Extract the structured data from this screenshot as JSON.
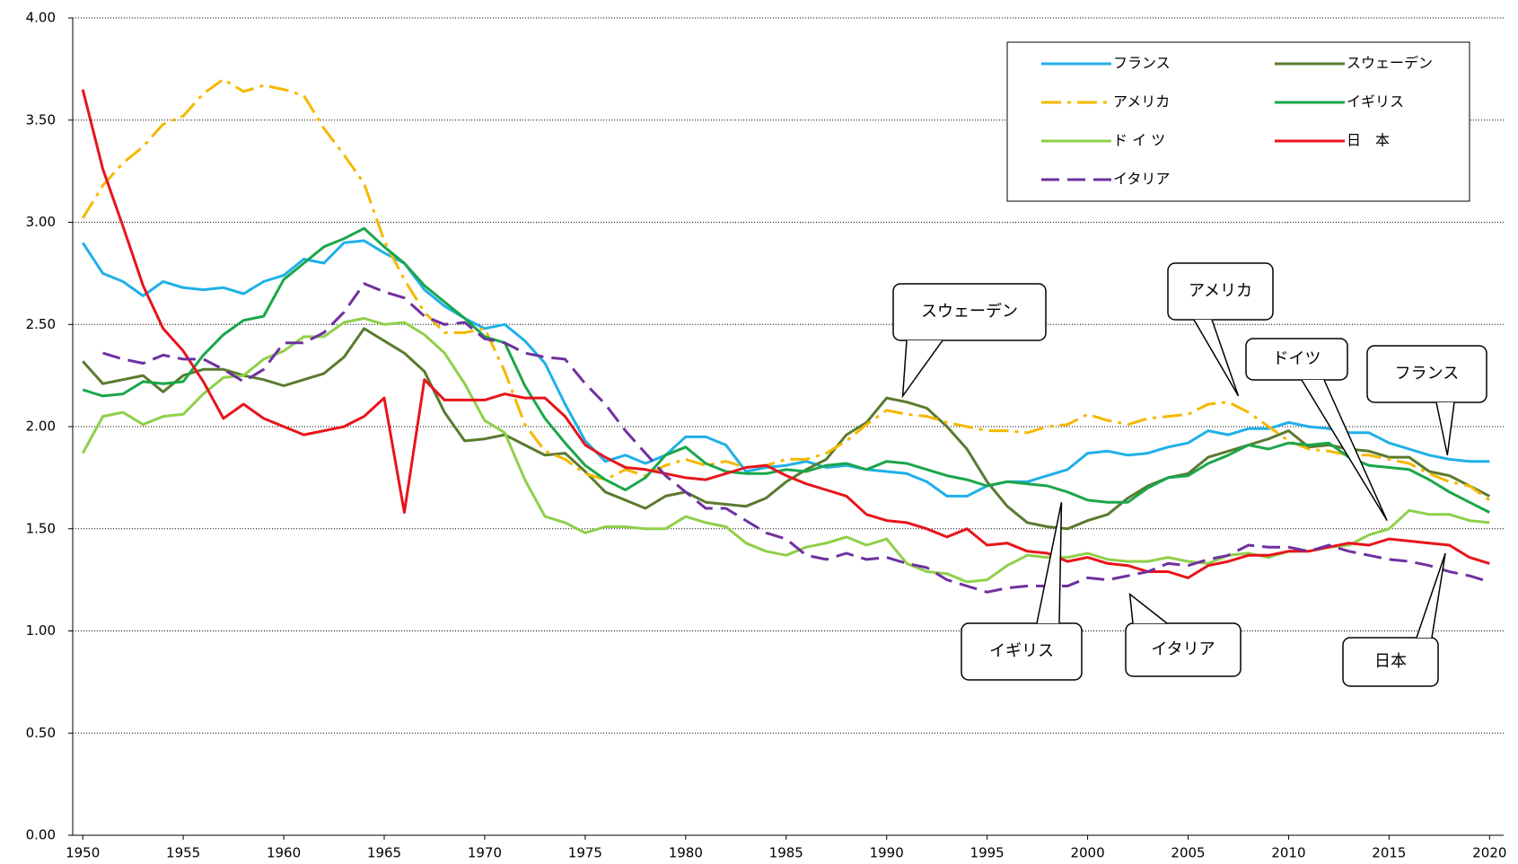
{
  "chart_data": {
    "type": "line",
    "x": [
      1950,
      1951,
      1952,
      1953,
      1954,
      1955,
      1956,
      1957,
      1958,
      1959,
      1960,
      1961,
      1962,
      1963,
      1964,
      1965,
      1966,
      1967,
      1968,
      1969,
      1970,
      1971,
      1972,
      1973,
      1974,
      1975,
      1976,
      1977,
      1978,
      1979,
      1980,
      1981,
      1982,
      1983,
      1984,
      1985,
      1986,
      1987,
      1988,
      1989,
      1990,
      1991,
      1992,
      1993,
      1994,
      1995,
      1996,
      1997,
      1998,
      1999,
      2000,
      2001,
      2002,
      2003,
      2004,
      2005,
      2006,
      2007,
      2008,
      2009,
      2010,
      2011,
      2012,
      2013,
      2014,
      2015,
      2016,
      2017,
      2018,
      2019,
      2020
    ],
    "series": [
      {
        "name": "フランス",
        "color": "#1fb0e8",
        "dash": "solid",
        "values": [
          2.9,
          2.75,
          2.71,
          2.64,
          2.71,
          2.68,
          2.67,
          2.68,
          2.65,
          2.71,
          2.74,
          2.82,
          2.8,
          2.9,
          2.91,
          2.85,
          2.8,
          2.67,
          2.59,
          2.53,
          2.48,
          2.5,
          2.42,
          2.31,
          2.11,
          1.93,
          1.83,
          1.86,
          1.82,
          1.86,
          1.95,
          1.95,
          1.91,
          1.78,
          1.8,
          1.81,
          1.83,
          1.8,
          1.81,
          1.79,
          1.78,
          1.77,
          1.73,
          1.66,
          1.66,
          1.71,
          1.73,
          1.73,
          1.76,
          1.79,
          1.87,
          1.88,
          1.86,
          1.87,
          1.9,
          1.92,
          1.98,
          1.96,
          1.99,
          1.99,
          2.02,
          2.0,
          1.99,
          1.97,
          1.97,
          1.92,
          1.89,
          1.86,
          1.84,
          1.83,
          1.83
        ]
      },
      {
        "name": "スウェーデン",
        "color": "#5a7a2e",
        "dash": "solid",
        "values": [
          2.32,
          2.21,
          2.23,
          2.25,
          2.17,
          2.25,
          2.28,
          2.28,
          2.25,
          2.23,
          2.2,
          2.23,
          2.26,
          2.34,
          2.48,
          2.42,
          2.36,
          2.27,
          2.07,
          1.93,
          1.94,
          1.96,
          1.91,
          1.86,
          1.87,
          1.78,
          1.68,
          1.64,
          1.6,
          1.66,
          1.68,
          1.63,
          1.62,
          1.61,
          1.65,
          1.73,
          1.79,
          1.84,
          1.96,
          2.02,
          2.14,
          2.12,
          2.09,
          2.0,
          1.89,
          1.73,
          1.61,
          1.53,
          1.51,
          1.5,
          1.54,
          1.57,
          1.65,
          1.71,
          1.75,
          1.77,
          1.85,
          1.88,
          1.91,
          1.94,
          1.98,
          1.9,
          1.91,
          1.89,
          1.88,
          1.85,
          1.85,
          1.78,
          1.76,
          1.71,
          1.66
        ]
      },
      {
        "name": "アメリカ",
        "color": "#f5b800",
        "dash": "dashdot",
        "values": [
          3.02,
          3.18,
          3.29,
          3.37,
          3.48,
          3.52,
          3.63,
          3.7,
          3.64,
          3.67,
          3.65,
          3.62,
          3.46,
          3.33,
          3.19,
          2.91,
          2.72,
          2.56,
          2.46,
          2.46,
          2.48,
          2.27,
          2.01,
          1.88,
          1.84,
          1.77,
          1.74,
          1.79,
          1.76,
          1.81,
          1.84,
          1.81,
          1.83,
          1.8,
          1.81,
          1.84,
          1.84,
          1.87,
          1.93,
          2.01,
          2.08,
          2.06,
          2.05,
          2.02,
          2.0,
          1.98,
          1.98,
          1.97,
          2.0,
          2.01,
          2.06,
          2.03,
          2.01,
          2.04,
          2.05,
          2.06,
          2.11,
          2.12,
          2.07,
          2.0,
          1.93,
          1.89,
          1.88,
          1.86,
          1.86,
          1.84,
          1.82,
          1.77,
          1.73,
          1.71,
          1.64
        ]
      },
      {
        "name": "イギリス",
        "color": "#1aa64a",
        "dash": "solid",
        "values": [
          2.18,
          2.15,
          2.16,
          2.22,
          2.21,
          2.22,
          2.35,
          2.45,
          2.52,
          2.54,
          2.72,
          2.8,
          2.88,
          2.92,
          2.97,
          2.88,
          2.8,
          2.69,
          2.61,
          2.53,
          2.44,
          2.41,
          2.2,
          2.04,
          1.92,
          1.81,
          1.74,
          1.69,
          1.75,
          1.86,
          1.9,
          1.82,
          1.78,
          1.77,
          1.77,
          1.79,
          1.78,
          1.81,
          1.82,
          1.79,
          1.83,
          1.82,
          1.79,
          1.76,
          1.74,
          1.71,
          1.73,
          1.72,
          1.71,
          1.68,
          1.64,
          1.63,
          1.63,
          1.7,
          1.75,
          1.76,
          1.82,
          1.86,
          1.91,
          1.89,
          1.92,
          1.91,
          1.92,
          1.85,
          1.81,
          1.8,
          1.79,
          1.74,
          1.68,
          1.63,
          1.58
        ]
      },
      {
        "name": "ド イ ツ",
        "color": "#8fcf4a",
        "dash": "solid",
        "values": [
          1.87,
          2.05,
          2.07,
          2.01,
          2.05,
          2.06,
          2.16,
          2.24,
          2.25,
          2.33,
          2.37,
          2.44,
          2.44,
          2.51,
          2.53,
          2.5,
          2.51,
          2.45,
          2.36,
          2.21,
          2.03,
          1.97,
          1.74,
          1.56,
          1.53,
          1.48,
          1.51,
          1.51,
          1.5,
          1.5,
          1.56,
          1.53,
          1.51,
          1.43,
          1.39,
          1.37,
          1.41,
          1.43,
          1.46,
          1.42,
          1.45,
          1.33,
          1.29,
          1.28,
          1.24,
          1.25,
          1.32,
          1.37,
          1.36,
          1.36,
          1.38,
          1.35,
          1.34,
          1.34,
          1.36,
          1.34,
          1.33,
          1.37,
          1.38,
          1.36,
          1.39,
          1.39,
          1.41,
          1.42,
          1.47,
          1.5,
          1.59,
          1.57,
          1.57,
          1.54,
          1.53
        ]
      },
      {
        "name": "日　本",
        "color": "#e8141b",
        "dash": "solid",
        "values": [
          3.65,
          3.26,
          2.98,
          2.69,
          2.48,
          2.37,
          2.22,
          2.04,
          2.11,
          2.04,
          2.0,
          1.96,
          1.98,
          2.0,
          2.05,
          2.14,
          1.58,
          2.23,
          2.13,
          2.13,
          2.13,
          2.16,
          2.14,
          2.14,
          2.05,
          1.91,
          1.85,
          1.8,
          1.79,
          1.77,
          1.75,
          1.74,
          1.77,
          1.8,
          1.81,
          1.76,
          1.72,
          1.69,
          1.66,
          1.57,
          1.54,
          1.53,
          1.5,
          1.46,
          1.5,
          1.42,
          1.43,
          1.39,
          1.38,
          1.34,
          1.36,
          1.33,
          1.32,
          1.29,
          1.29,
          1.26,
          1.32,
          1.34,
          1.37,
          1.37,
          1.39,
          1.39,
          1.41,
          1.43,
          1.42,
          1.45,
          1.44,
          1.43,
          1.42,
          1.36,
          1.33
        ]
      },
      {
        "name": "イタリア",
        "color": "#7030a0",
        "dash": "dashed",
        "values": [
          null,
          2.36,
          2.33,
          2.31,
          2.35,
          2.33,
          2.33,
          2.28,
          2.22,
          2.28,
          2.41,
          2.41,
          2.46,
          2.56,
          2.7,
          2.66,
          2.63,
          2.54,
          2.5,
          2.51,
          2.43,
          2.41,
          2.36,
          2.34,
          2.33,
          2.21,
          2.11,
          1.98,
          1.87,
          1.76,
          1.68,
          1.6,
          1.6,
          1.54,
          1.48,
          1.45,
          1.37,
          1.35,
          1.38,
          1.35,
          1.36,
          1.33,
          1.31,
          1.25,
          1.22,
          1.19,
          1.21,
          1.22,
          1.22,
          1.22,
          1.26,
          1.25,
          1.27,
          1.29,
          1.33,
          1.32,
          1.35,
          1.37,
          1.42,
          1.41,
          1.41,
          1.39,
          1.42,
          1.39,
          1.37,
          1.35,
          1.34,
          1.32,
          1.29,
          1.27,
          1.24
        ]
      }
    ],
    "xlim": [
      1949.5,
      2020.7
    ],
    "xticks": [
      1950,
      1955,
      1960,
      1965,
      1970,
      1975,
      1980,
      1985,
      1990,
      1995,
      2000,
      2005,
      2010,
      2015,
      2020
    ],
    "ylim": [
      0,
      4
    ],
    "yticks": [
      {
        "value": 0,
        "label": "0.00"
      },
      {
        "value": 0.5,
        "label": "0.50"
      },
      {
        "value": 1,
        "label": "1.00"
      },
      {
        "value": 1.5,
        "label": "1.50"
      },
      {
        "value": 2,
        "label": "2.00"
      },
      {
        "value": 2.5,
        "label": "2.50"
      },
      {
        "value": 3,
        "label": "3.00"
      },
      {
        "value": 3.5,
        "label": "3.50"
      },
      {
        "value": 4,
        "label": "4.00"
      }
    ],
    "grid": true,
    "legend": "upper right",
    "annotations": [
      {
        "text": "スウェーデン"
      },
      {
        "text": "アメリカ"
      },
      {
        "text": "ドイツ"
      },
      {
        "text": "フランス"
      },
      {
        "text": "イギリス"
      },
      {
        "text": "イタリア"
      },
      {
        "text": "日本"
      }
    ]
  }
}
